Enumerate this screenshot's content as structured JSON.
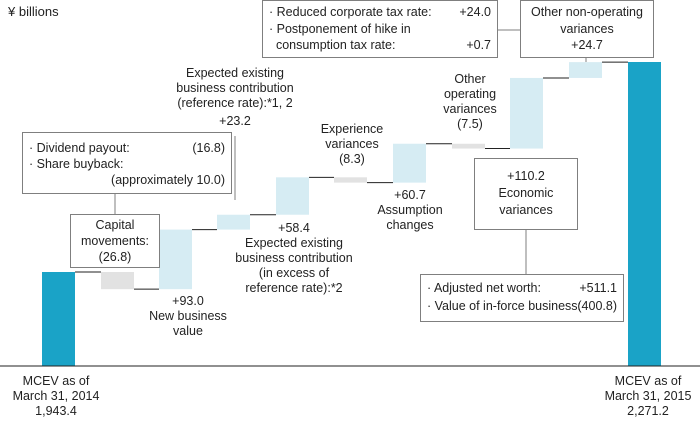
{
  "chart_data": {
    "type": "waterfall",
    "unit": "¥ billions",
    "colors": {
      "total": "#1aa3c7",
      "positive": "#d6ecf3",
      "negative": "#e2e2e2",
      "line": "#222222",
      "connector": "#7f7f7f"
    },
    "steps": [
      {
        "id": "start",
        "kind": "total",
        "value": 1943.4,
        "label_lines": [
          "MCEV as of",
          "March 31, 2014",
          "1,943.4"
        ]
      },
      {
        "id": "capital",
        "kind": "delta",
        "value": -26.8
      },
      {
        "id": "new_business",
        "kind": "delta",
        "value": 93.0
      },
      {
        "id": "expected_ref",
        "kind": "delta",
        "value": 23.2
      },
      {
        "id": "expected_excess",
        "kind": "delta",
        "value": 58.4
      },
      {
        "id": "experience",
        "kind": "delta",
        "value": -8.3
      },
      {
        "id": "assumption",
        "kind": "delta",
        "value": 60.7
      },
      {
        "id": "other_operating",
        "kind": "delta",
        "value": -7.5
      },
      {
        "id": "economic",
        "kind": "delta",
        "value": 110.2
      },
      {
        "id": "other_non_operating",
        "kind": "delta",
        "value": 24.7
      },
      {
        "id": "end",
        "kind": "total",
        "value": 2271.2,
        "label_lines": [
          "MCEV as of",
          "March 31, 2015",
          "2,271.2"
        ]
      }
    ],
    "annotations": {
      "capital": [
        "Capital",
        "movements:",
        "(26.8)"
      ],
      "new_business": [
        "+93.0",
        "New business",
        "value"
      ],
      "expected_ref": [
        "Expected existing",
        "business contribution",
        "(reference rate):*1, 2",
        "+23.2"
      ],
      "expected_excess": [
        "+58.4",
        "Expected existing",
        "business contribution",
        "(in excess of",
        "reference rate):*2"
      ],
      "experience": [
        "Experience",
        "variances",
        "(8.3)"
      ],
      "assumption": [
        "+60.7",
        "Assumption",
        "changes"
      ],
      "other_operating": [
        "Other",
        "operating",
        "variances",
        "(7.5)"
      ],
      "economic": [
        "+110.2",
        "Economic",
        "variances"
      ],
      "other_non_operating": [
        "Other non-operating",
        "variances",
        "+24.7"
      ]
    },
    "details": {
      "capital": [
        {
          "label": "· Dividend payout:",
          "value": "(16.8)"
        },
        {
          "label": "· Share buyback:",
          "value": ""
        },
        {
          "label": "",
          "value": "(approximately 10.0)"
        }
      ],
      "other_non_operating": [
        {
          "label": "· Reduced corporate tax rate:",
          "value": "+24.0"
        },
        {
          "label": "· Postponement of hike in",
          "value": ""
        },
        {
          "label": "  consumption tax rate:",
          "value": "+0.7"
        }
      ],
      "economic": [
        {
          "label": "· Adjusted net worth:",
          "value": "+511.1"
        },
        {
          "label": "· Value of in-force business:",
          "value": "(400.8)"
        }
      ]
    }
  }
}
